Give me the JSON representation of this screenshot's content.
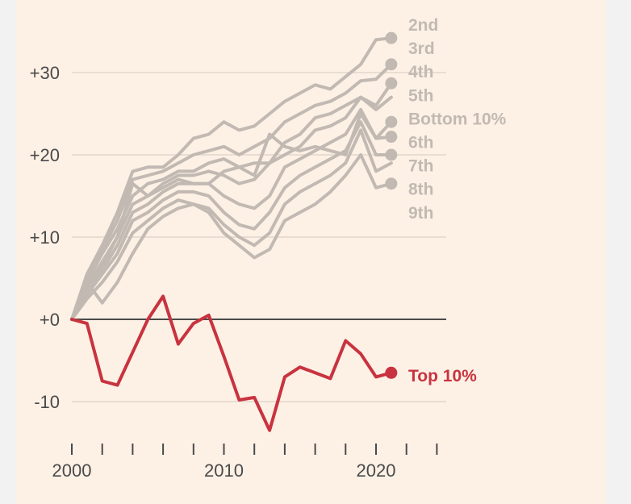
{
  "chart_data": {
    "type": "line",
    "title": "",
    "xlabel": "",
    "ylabel": "",
    "xlim": [
      2000,
      2024
    ],
    "ylim": [
      -15,
      37
    ],
    "x_ticks": [
      2000,
      2002,
      2004,
      2006,
      2008,
      2010,
      2012,
      2014,
      2016,
      2018,
      2020,
      2022,
      2024
    ],
    "x_tick_labels": [
      {
        "value": 2000,
        "label": "2000"
      },
      {
        "value": 2010,
        "label": "2010"
      },
      {
        "value": 2020,
        "label": "2020"
      }
    ],
    "y_ticks": [
      {
        "value": 30,
        "label": "+30"
      },
      {
        "value": 20,
        "label": "+20"
      },
      {
        "value": 10,
        "label": "+10"
      },
      {
        "value": 0,
        "label": "+0"
      },
      {
        "value": -10,
        "label": "-10"
      }
    ],
    "colors": {
      "grey": "#c2bab2",
      "red": "#c8333f",
      "baseline": "#4a4a4a",
      "grid": "#e9ddd2"
    },
    "years": [
      2000,
      2001,
      2002,
      2003,
      2004,
      2005,
      2006,
      2007,
      2008,
      2009,
      2010,
      2011,
      2012,
      2013,
      2014,
      2015,
      2016,
      2017,
      2018,
      2019,
      2020,
      2021
    ],
    "series": [
      {
        "name": "2nd",
        "label": "2nd",
        "color": "#c2bab2",
        "end_dot": true,
        "values": [
          0,
          5.5,
          9,
          13,
          18,
          18.5,
          18.5,
          20,
          22,
          22.5,
          24,
          23,
          23.5,
          25,
          26.5,
          27.5,
          28.5,
          28,
          29.5,
          31,
          34,
          34.2
        ]
      },
      {
        "name": "3rd",
        "label": "3rd",
        "color": "#c2bab2",
        "end_dot": true,
        "values": [
          0,
          5,
          8.5,
          12,
          17,
          17.5,
          18,
          19,
          20,
          20.5,
          21,
          20,
          21,
          22,
          24,
          25,
          26,
          26.5,
          27.5,
          29,
          29.2,
          31
        ]
      },
      {
        "name": "4th",
        "label": "4th",
        "color": "#c2bab2",
        "end_dot": true,
        "values": [
          0,
          4.5,
          8,
          11,
          15,
          16.5,
          17,
          18,
          18,
          19,
          19.5,
          18.5,
          19,
          19,
          21.5,
          22.5,
          24.5,
          25,
          26,
          27,
          26,
          28.7
        ]
      },
      {
        "name": "5th",
        "label": "5th",
        "color": "#c2bab2",
        "end_dot": false,
        "values": [
          0,
          4,
          7,
          10,
          14,
          15,
          16.5,
          17.5,
          17.5,
          18,
          17.5,
          16.5,
          17,
          19,
          20,
          21,
          23,
          23.5,
          24.5,
          27,
          25.5,
          27
        ]
      },
      {
        "name": "bottom-10",
        "label": "Bottom 10%",
        "color": "#c2bab2",
        "end_dot": true,
        "values": [
          0,
          4,
          6.5,
          10,
          16.5,
          15,
          16,
          17,
          16.5,
          16.5,
          18,
          18.5,
          17.5,
          22.5,
          21,
          20.5,
          21,
          20.5,
          20,
          25,
          22,
          24
        ]
      },
      {
        "name": "6th",
        "label": "6th",
        "color": "#c2bab2",
        "end_dot": true,
        "values": [
          0,
          3.5,
          6,
          9,
          13,
          14,
          15.5,
          16.5,
          16.5,
          16.5,
          15,
          14,
          13.5,
          15,
          18.5,
          19.5,
          20.5,
          21.5,
          22.5,
          25.5,
          22,
          22.2
        ]
      },
      {
        "name": "7th",
        "label": "7th",
        "color": "#c2bab2",
        "end_dot": true,
        "values": [
          0,
          3,
          5.5,
          8,
          12,
          13,
          14.5,
          15.5,
          15.5,
          15,
          13,
          11.5,
          11,
          13,
          16,
          17.5,
          18.5,
          19.5,
          20.5,
          24,
          20,
          20
        ]
      },
      {
        "name": "8th",
        "label": "8th",
        "color": "#c2bab2",
        "end_dot": false,
        "values": [
          0,
          2.5,
          4.5,
          7,
          10.5,
          12,
          13.5,
          14.5,
          14,
          13.5,
          11.5,
          10,
          9,
          10.5,
          14,
          15.5,
          16.5,
          17.5,
          19,
          23,
          18,
          19
        ]
      },
      {
        "name": "9th",
        "label": "9th",
        "color": "#c2bab2",
        "end_dot": true,
        "values": [
          0,
          4.5,
          2,
          4.5,
          8,
          11,
          12.5,
          13.5,
          14,
          13,
          10.5,
          9,
          7.5,
          8.5,
          12,
          13,
          14,
          15.5,
          17.5,
          20,
          16,
          16.5
        ]
      },
      {
        "name": "top-10",
        "label": "Top 10%",
        "color": "#c8333f",
        "end_dot": true,
        "values": [
          0,
          -0.5,
          -7.5,
          -8,
          -4,
          0,
          2.8,
          -3,
          -0.5,
          0.5,
          -4.5,
          -9.8,
          -9.5,
          -13.5,
          -7,
          -5.8,
          -6.5,
          -7.2,
          -2.6,
          -4.2,
          -7,
          -6.5
        ]
      }
    ],
    "label_order": [
      "2nd",
      "3rd",
      "4th",
      "5th",
      "Bottom 10%",
      "6th",
      "7th",
      "8th",
      "9th"
    ],
    "highlight_label": "Top 10%"
  }
}
